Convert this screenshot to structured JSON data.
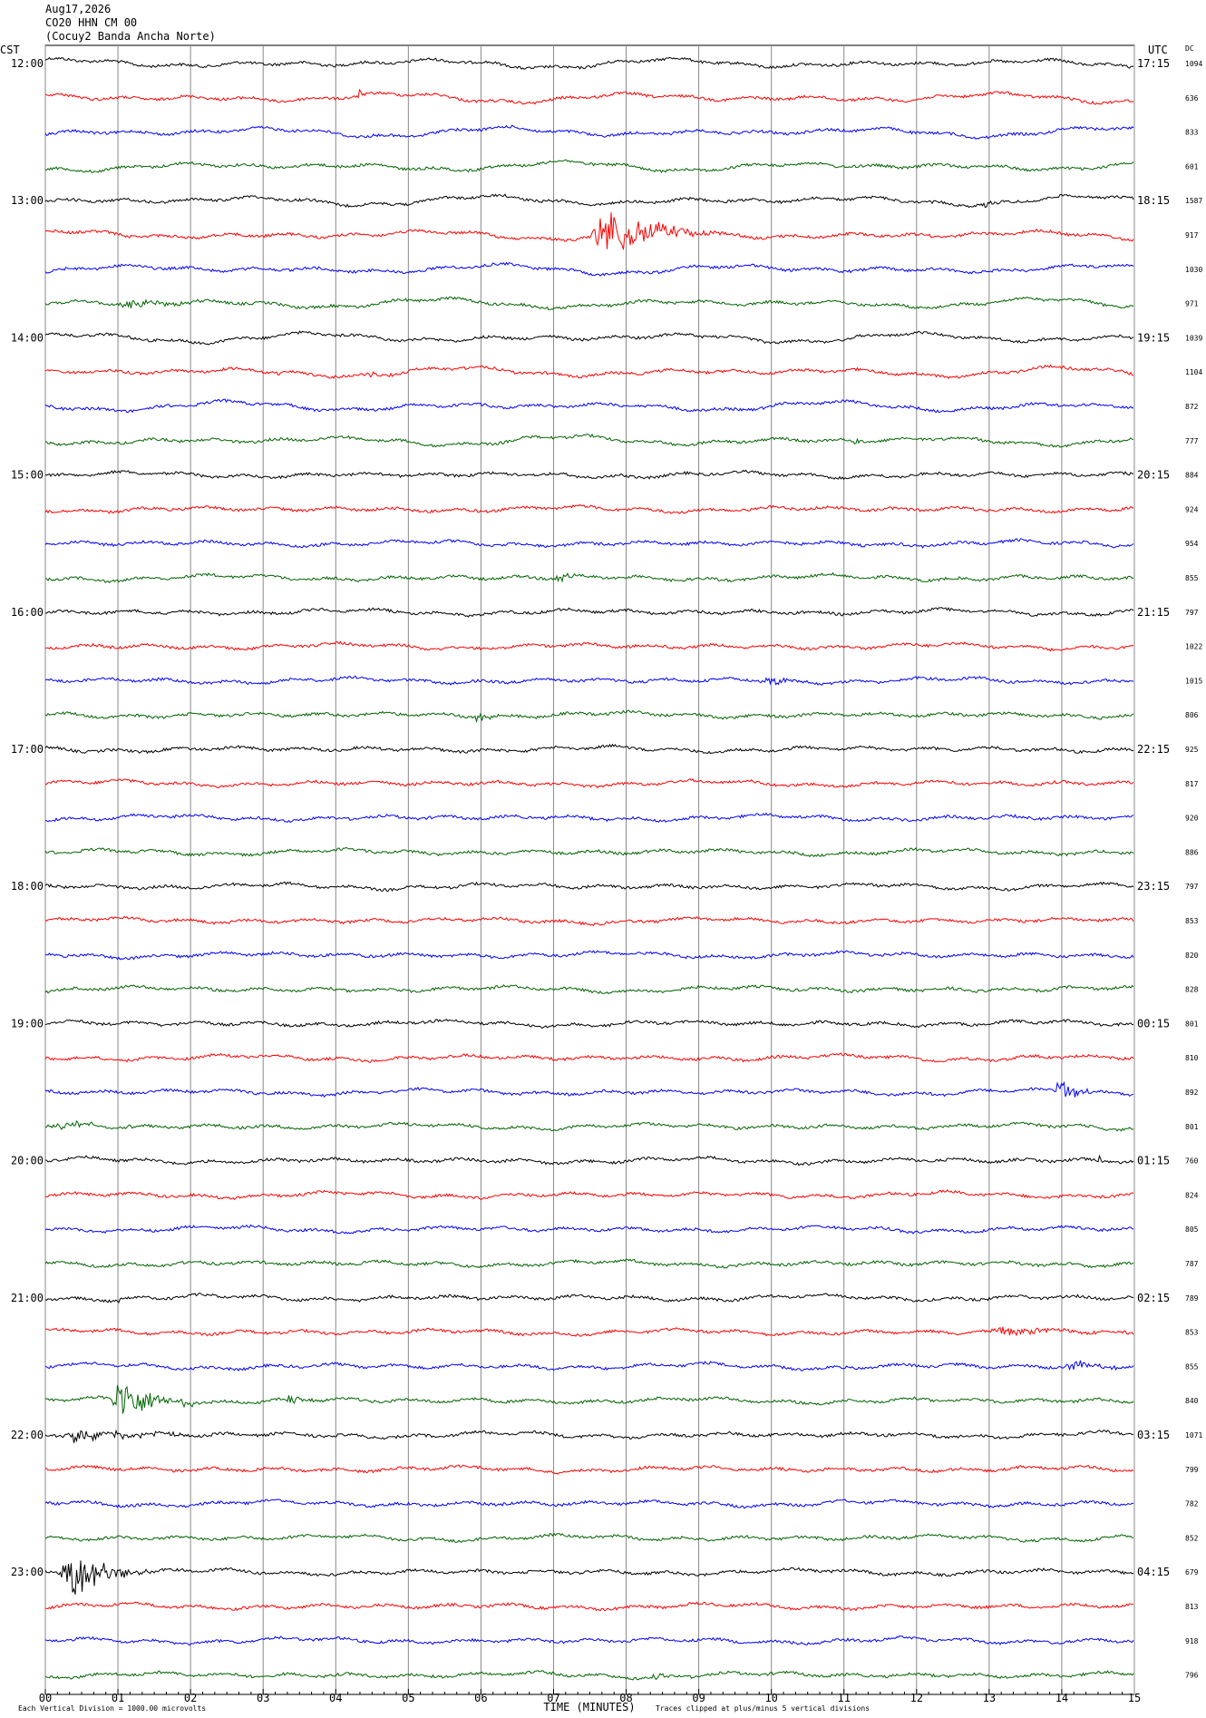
{
  "header": {
    "date": "Aug17,2026",
    "station": "CO20 HHN CM 00",
    "site": "(Cocuy2 Banda Ancha Norte)"
  },
  "left_label": "CST",
  "right_label": "UTC",
  "dc_label": "DC",
  "hour_labels": [
    {
      "cst": "12:00",
      "utc": "17:15"
    },
    {
      "cst": "13:00",
      "utc": "18:15"
    },
    {
      "cst": "14:00",
      "utc": "19:15"
    },
    {
      "cst": "15:00",
      "utc": "20:15"
    },
    {
      "cst": "16:00",
      "utc": "21:15"
    },
    {
      "cst": "17:00",
      "utc": "22:15"
    },
    {
      "cst": "18:00",
      "utc": "23:15"
    },
    {
      "cst": "19:00",
      "utc": "00:15"
    },
    {
      "cst": "20:00",
      "utc": "01:15"
    },
    {
      "cst": "21:00",
      "utc": "02:15"
    },
    {
      "cst": "22:00",
      "utc": "03:15"
    },
    {
      "cst": "23:00",
      "utc": "04:15"
    }
  ],
  "dc": [
    1094,
    636,
    833,
    601,
    1587,
    917,
    1030,
    971,
    1039,
    1104,
    872,
    777,
    884,
    924,
    954,
    855,
    797,
    1022,
    1015,
    806,
    925,
    817,
    920,
    886,
    797,
    853,
    820,
    828,
    801,
    810,
    892,
    801,
    760,
    824,
    805,
    787,
    789,
    853,
    855,
    840,
    1071,
    799,
    782,
    852,
    679,
    813,
    918,
    796
  ],
  "trace_colors": [
    "#000000",
    "#ff0000",
    "#0000ff",
    "#006400"
  ],
  "x_ticks": [
    "00",
    "01",
    "02",
    "03",
    "04",
    "05",
    "06",
    "07",
    "08",
    "09",
    "10",
    "11",
    "12",
    "13",
    "14",
    "15"
  ],
  "x_axis_title": "TIME (MINUTES)",
  "footer_left": "Each Vertical Division = 1000.00 microvolts",
  "footer_right": "Traces clipped at plus/minus 5 vertical divisions"
}
